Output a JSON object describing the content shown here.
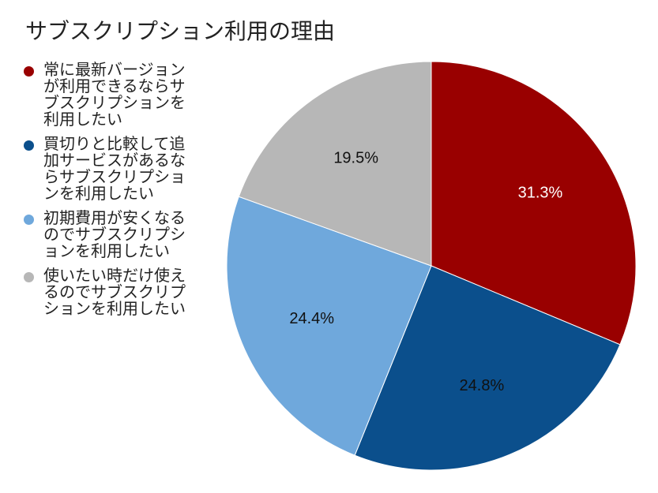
{
  "chart_data": {
    "type": "pie",
    "title": "サブスクリプション利用の理由",
    "legend_position": "left",
    "slices": [
      {
        "label": "常に最新バージョンが利用できるならサブスクリプションを利用したい",
        "value": 31.3,
        "display": "31.3%",
        "color": "#990000",
        "label_color": "#ffffff"
      },
      {
        "label": "買切りと比較して追加サービスがあるならサブスクリプションを利用したい",
        "value": 24.8,
        "display": "24.8%",
        "color": "#0b4f8c",
        "label_color": "#111111"
      },
      {
        "label": "初期費用が安くなるのでサブスクリプションを利用したい",
        "value": 24.4,
        "display": "24.4%",
        "color": "#6fa8dc",
        "label_color": "#111111"
      },
      {
        "label": "使いたい時だけ使えるのでサブスクリプションを利用したい",
        "value": 19.5,
        "display": "19.5%",
        "color": "#b7b7b7",
        "label_color": "#111111"
      }
    ]
  }
}
